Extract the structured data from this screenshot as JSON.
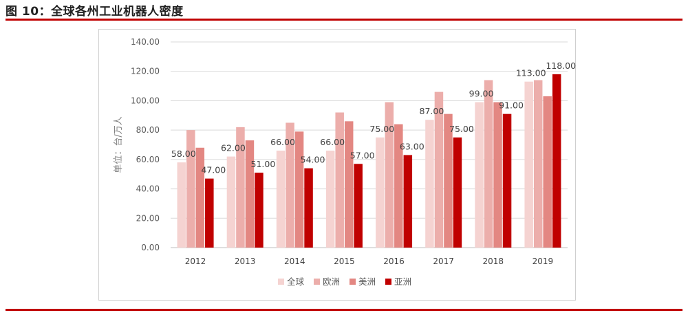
{
  "header": {
    "title": "图 10：全球各州工业机器人密度"
  },
  "colors": {
    "accent": "#c00000"
  },
  "chart_data": {
    "type": "bar",
    "categories": [
      "2012",
      "2013",
      "2014",
      "2015",
      "2016",
      "2017",
      "2018",
      "2019"
    ],
    "series": [
      {
        "name": "全球",
        "color": "#f5d3d1",
        "values": [
          58,
          62,
          66,
          66,
          75,
          87,
          99,
          113
        ]
      },
      {
        "name": "欧洲",
        "color": "#ecaeab",
        "values": [
          80,
          82,
          85,
          92,
          99,
          106,
          114,
          114
        ]
      },
      {
        "name": "美洲",
        "color": "#e38782",
        "values": [
          68,
          73,
          79,
          86,
          84,
          91,
          99,
          103
        ]
      },
      {
        "name": "亚洲",
        "color": "#c00000",
        "values": [
          47,
          51,
          54,
          57,
          63,
          75,
          91,
          118
        ]
      }
    ],
    "data_labels": {
      "全球": [
        "58.00",
        "62.00",
        "66.00",
        "66.00",
        "75.00",
        "87.00",
        "99.00",
        "113.00"
      ],
      "亚洲": [
        "47.00",
        "51.00",
        "54.00",
        "57.00",
        "63.00",
        "75.00",
        "91.00",
        "118.00"
      ]
    },
    "yticks": [
      "0.00",
      "20.00",
      "40.00",
      "60.00",
      "80.00",
      "100.00",
      "120.00",
      "140.00"
    ],
    "ylim": [
      0,
      140
    ],
    "ylabel": "单位：台/万人",
    "xlabel": "",
    "grid": true,
    "legend_position": "bottom"
  }
}
